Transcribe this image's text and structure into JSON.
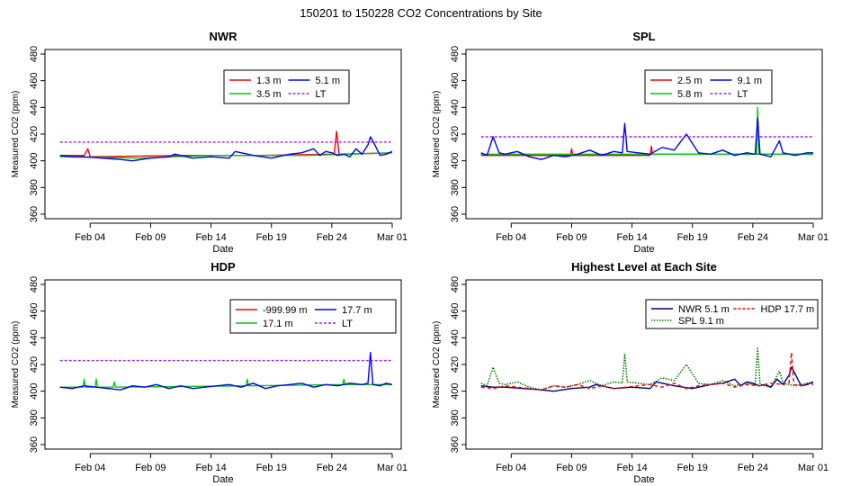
{
  "page_title": "150201  to  150228 CO2 Concentrations by Site",
  "chart_data": [
    {
      "type": "line",
      "title": "NWR",
      "xlabel": "Date",
      "ylabel": "Measured CO2 (ppm)",
      "ylim": [
        360,
        480
      ],
      "yticks": [
        360,
        380,
        400,
        420,
        440,
        460,
        480
      ],
      "xlim": [
        1,
        29
      ],
      "xticks": [
        {
          "day": 4,
          "label": "Feb 04"
        },
        {
          "day": 9,
          "label": "Feb 09"
        },
        {
          "day": 14,
          "label": "Feb 14"
        },
        {
          "day": 19,
          "label": "Feb 19"
        },
        {
          "day": 24,
          "label": "Feb 24"
        },
        {
          "day": 29,
          "label": "Mar 01"
        }
      ],
      "legend": [
        {
          "label": "1.3 m",
          "color": "#ff0000",
          "style": "solid"
        },
        {
          "label": "5.1 m",
          "color": "#0000ff",
          "style": "solid"
        },
        {
          "label": "3.5 m",
          "color": "#00cc00",
          "style": "solid"
        },
        {
          "label": "LT",
          "color": "#a020f0",
          "style": "dashed"
        }
      ],
      "legend_cols": 2,
      "legend_position": "top-right",
      "series": [
        {
          "name": "1.3 m",
          "color": "#ff0000",
          "x": [
            1.5,
            3.5,
            3.8,
            4.0,
            12,
            18,
            24.2,
            24.4,
            24.6,
            29
          ],
          "y": [
            404,
            404,
            409,
            403,
            404,
            404,
            405,
            422,
            405,
            406
          ]
        },
        {
          "name": "3.5 m",
          "color": "#00cc00",
          "x": [
            1.5,
            8,
            14,
            22,
            29
          ],
          "y": [
            403,
            402,
            404,
            404,
            406
          ]
        },
        {
          "name": "5.1 m",
          "color": "#0000ff",
          "x": [
            1.5,
            2.5,
            3.5,
            5,
            6.5,
            7.5,
            9,
            10.5,
            11,
            12.5,
            14,
            15.5,
            16,
            17.5,
            19,
            20.5,
            21.5,
            22.5,
            23,
            23.5,
            24,
            24.5,
            25,
            25.5,
            26,
            26.5,
            27,
            27.2,
            27.5,
            28,
            28.5,
            29
          ],
          "y": [
            404,
            403,
            403,
            402,
            401,
            400,
            402,
            403,
            405,
            402,
            403,
            402,
            407,
            404,
            402,
            405,
            406,
            409,
            404,
            407,
            406,
            404,
            405,
            403,
            409,
            405,
            412,
            418,
            413,
            404,
            405,
            407
          ]
        },
        {
          "name": "LT",
          "color": "#a020f0",
          "dashed": true,
          "x": [
            1.5,
            29
          ],
          "y": [
            414,
            414
          ]
        }
      ]
    },
    {
      "type": "line",
      "title": "SPL",
      "xlabel": "Date",
      "ylabel": "Measured CO2 (ppm)",
      "ylim": [
        360,
        480
      ],
      "yticks": [
        360,
        380,
        400,
        420,
        440,
        460,
        480
      ],
      "xlim": [
        1,
        29
      ],
      "xticks": [
        {
          "day": 4,
          "label": "Feb 04"
        },
        {
          "day": 9,
          "label": "Feb 09"
        },
        {
          "day": 14,
          "label": "Feb 14"
        },
        {
          "day": 19,
          "label": "Feb 19"
        },
        {
          "day": 24,
          "label": "Feb 24"
        },
        {
          "day": 29,
          "label": "Mar 01"
        }
      ],
      "legend": [
        {
          "label": "2.5 m",
          "color": "#ff0000",
          "style": "solid"
        },
        {
          "label": "9.1 m",
          "color": "#0000ff",
          "style": "solid"
        },
        {
          "label": "5.8 m",
          "color": "#00cc00",
          "style": "solid"
        },
        {
          "label": "LT",
          "color": "#a020f0",
          "style": "dashed"
        }
      ],
      "legend_cols": 2,
      "legend_position": "top-right",
      "series": [
        {
          "name": "2.5 m",
          "color": "#ff0000",
          "x": [
            1.5,
            8.9,
            9.0,
            9.1,
            15.5,
            15.6,
            15.7,
            29
          ],
          "y": [
            404,
            404,
            409,
            404,
            404,
            411,
            405,
            405
          ]
        },
        {
          "name": "5.8 m",
          "color": "#00cc00",
          "x": [
            1.5,
            24.3,
            24.4,
            24.5,
            29
          ],
          "y": [
            405,
            405,
            440,
            405,
            405
          ]
        },
        {
          "name": "9.1 m",
          "color": "#0000ff",
          "x": [
            1.5,
            2.0,
            2.5,
            3.0,
            3.5,
            4.5,
            5.5,
            6.5,
            7.5,
            8.5,
            9.5,
            10.5,
            11.5,
            12.5,
            13.2,
            13.4,
            13.6,
            14.5,
            15.5,
            16.5,
            17.5,
            18.5,
            19.5,
            20.5,
            21.5,
            22.5,
            23.5,
            24.2,
            24.4,
            24.6,
            25.5,
            26.2,
            26.5,
            27.5,
            28.5,
            29
          ],
          "y": [
            406,
            404,
            418,
            406,
            405,
            407,
            403,
            401,
            404,
            403,
            405,
            408,
            404,
            407,
            406,
            428,
            407,
            406,
            405,
            410,
            408,
            420,
            406,
            405,
            408,
            404,
            406,
            405,
            432,
            405,
            403,
            415,
            406,
            404,
            406,
            406
          ]
        },
        {
          "name": "LT",
          "color": "#a020f0",
          "dashed": true,
          "x": [
            1.5,
            29
          ],
          "y": [
            418,
            418
          ]
        }
      ]
    },
    {
      "type": "line",
      "title": "HDP",
      "xlabel": "Date",
      "ylabel": "Measured CO2 (ppm)",
      "ylim": [
        360,
        480
      ],
      "yticks": [
        360,
        380,
        400,
        420,
        440,
        460,
        480
      ],
      "xlim": [
        1,
        29
      ],
      "xticks": [
        {
          "day": 4,
          "label": "Feb 04"
        },
        {
          "day": 9,
          "label": "Feb 09"
        },
        {
          "day": 14,
          "label": "Feb 14"
        },
        {
          "day": 19,
          "label": "Feb 19"
        },
        {
          "day": 24,
          "label": "Feb 24"
        },
        {
          "day": 29,
          "label": "Mar 01"
        }
      ],
      "legend": [
        {
          "label": "-999.99 m",
          "color": "#ff0000",
          "style": "solid"
        },
        {
          "label": "17.7 m",
          "color": "#0000ff",
          "style": "solid"
        },
        {
          "label": "17.1 m",
          "color": "#00cc00",
          "style": "solid"
        },
        {
          "label": "LT",
          "color": "#a020f0",
          "style": "dashed"
        }
      ],
      "legend_cols": 2,
      "legend_position": "top-right",
      "series": [
        {
          "name": "17.1 m",
          "color": "#00cc00",
          "x": [
            1.5,
            3.4,
            3.5,
            3.6,
            4.4,
            4.5,
            4.6,
            5.9,
            6.0,
            6.1,
            16.9,
            17.0,
            17.1,
            24.9,
            25.0,
            25.1,
            29
          ],
          "y": [
            403,
            403,
            409,
            403,
            403,
            409,
            403,
            403,
            407,
            403,
            404,
            409,
            404,
            405,
            409,
            405,
            405
          ]
        },
        {
          "name": "17.7 m",
          "color": "#0000ff",
          "x": [
            1.5,
            2.5,
            3.5,
            4.5,
            5.5,
            6.5,
            7.5,
            8.5,
            9.5,
            10.5,
            11.5,
            12.5,
            13.5,
            14.5,
            15.5,
            16.5,
            17.5,
            18.5,
            19.5,
            20.5,
            21.5,
            22.5,
            23.5,
            24.5,
            25.5,
            26.5,
            27.0,
            27.2,
            27.4,
            28,
            28.5,
            29
          ],
          "y": [
            403,
            402,
            404,
            403,
            402,
            401,
            404,
            403,
            405,
            402,
            404,
            402,
            403,
            404,
            405,
            403,
            406,
            402,
            404,
            405,
            406,
            403,
            405,
            404,
            406,
            405,
            406,
            429,
            405,
            404,
            406,
            405
          ]
        },
        {
          "name": "LT",
          "color": "#a020f0",
          "dashed": true,
          "x": [
            1.5,
            29
          ],
          "y": [
            423,
            423
          ]
        }
      ]
    },
    {
      "type": "line",
      "title": "Highest Level at Each Site",
      "xlabel": "Date",
      "ylabel": "Measured CO2 (ppm)",
      "ylim": [
        360,
        480
      ],
      "yticks": [
        360,
        380,
        400,
        420,
        440,
        460,
        480
      ],
      "xlim": [
        1,
        29
      ],
      "xticks": [
        {
          "day": 4,
          "label": "Feb 04"
        },
        {
          "day": 9,
          "label": "Feb 09"
        },
        {
          "day": 14,
          "label": "Feb 14"
        },
        {
          "day": 19,
          "label": "Feb 19"
        },
        {
          "day": 24,
          "label": "Feb 24"
        },
        {
          "day": 29,
          "label": "Mar 01"
        }
      ],
      "legend": [
        {
          "label": "NWR  5.1 m",
          "color": "#000080",
          "style": "solid"
        },
        {
          "label": "HDP  17.7 m",
          "color": "#ff0000",
          "style": "dashed"
        },
        {
          "label": "SPL  9.1 m",
          "color": "#008000",
          "style": "dotted"
        }
      ],
      "legend_cols": 2,
      "legend_position": "top-right",
      "series": [
        {
          "name": "SPL  9.1 m",
          "color": "#008000",
          "dotted": true,
          "x": [
            1.5,
            2.0,
            2.5,
            3.0,
            3.5,
            4.5,
            5.5,
            6.5,
            7.5,
            8.5,
            9.5,
            10.5,
            11.5,
            12.5,
            13.2,
            13.4,
            13.6,
            14.5,
            15.5,
            16.5,
            17.5,
            18.5,
            19.5,
            20.5,
            21.5,
            22.5,
            23.5,
            24.2,
            24.4,
            24.6,
            25.5,
            26.2,
            26.5,
            27.5,
            28.5,
            29
          ],
          "y": [
            406,
            404,
            418,
            406,
            405,
            407,
            403,
            401,
            404,
            403,
            405,
            408,
            404,
            407,
            406,
            428,
            407,
            406,
            405,
            410,
            408,
            420,
            406,
            405,
            408,
            404,
            406,
            405,
            432,
            405,
            403,
            415,
            406,
            404,
            406,
            406
          ]
        },
        {
          "name": "NWR  5.1 m",
          "color": "#000080",
          "x": [
            1.5,
            2.5,
            3.5,
            5,
            6.5,
            7.5,
            9,
            10.5,
            11,
            12.5,
            14,
            15.5,
            16,
            17.5,
            19,
            20.5,
            21.5,
            22.5,
            23,
            23.5,
            24,
            24.5,
            25,
            25.5,
            26,
            26.5,
            27,
            27.2,
            27.5,
            28,
            28.5,
            29
          ],
          "y": [
            404,
            403,
            403,
            402,
            401,
            400,
            402,
            403,
            405,
            402,
            403,
            402,
            407,
            404,
            402,
            405,
            406,
            409,
            404,
            407,
            406,
            404,
            405,
            403,
            409,
            405,
            412,
            418,
            413,
            404,
            405,
            407
          ]
        },
        {
          "name": "HDP  17.7 m",
          "color": "#ff0000",
          "dashed": true,
          "x": [
            1.5,
            2.5,
            3.5,
            4.5,
            5.5,
            6.5,
            7.5,
            8.5,
            9.5,
            10.5,
            11.5,
            12.5,
            13.5,
            14.5,
            15.5,
            16.5,
            17.5,
            18.5,
            19.5,
            20.5,
            21.5,
            22.5,
            23.5,
            24.5,
            25.5,
            26.5,
            27.0,
            27.2,
            27.4,
            28,
            28.5,
            29
          ],
          "y": [
            403,
            402,
            404,
            403,
            402,
            401,
            404,
            403,
            405,
            402,
            404,
            402,
            403,
            404,
            405,
            403,
            406,
            402,
            404,
            405,
            406,
            403,
            405,
            404,
            406,
            405,
            406,
            429,
            405,
            404,
            406,
            405
          ]
        }
      ]
    }
  ]
}
